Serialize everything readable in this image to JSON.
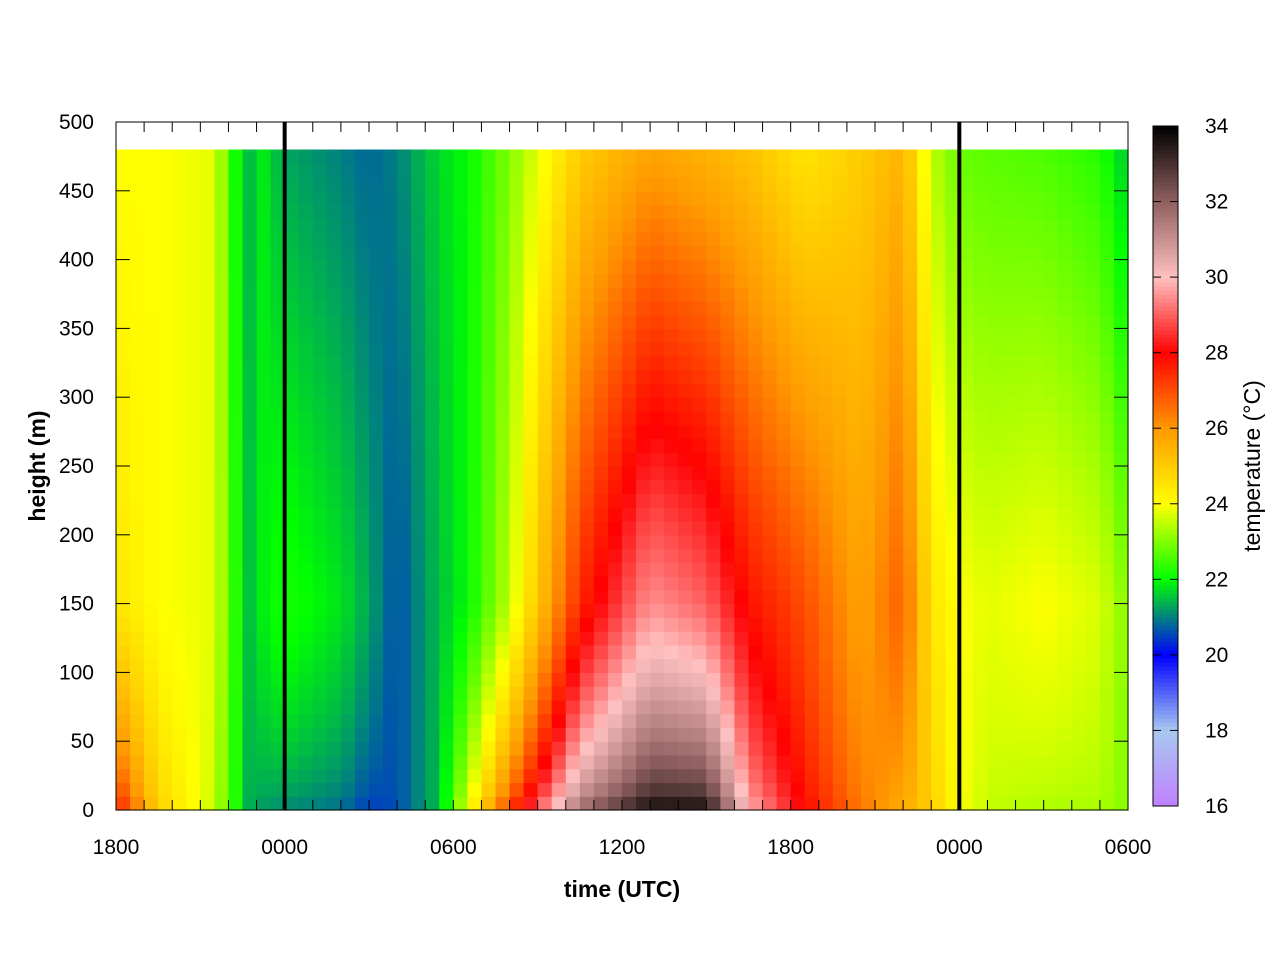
{
  "chart_data": {
    "type": "heatmap",
    "title": "",
    "xlabel": "time (UTC)",
    "ylabel": "height (m)",
    "colorbar_label": "temperature (°C)",
    "x_tick_labels": [
      "1800",
      "0000",
      "0600",
      "1200",
      "1800",
      "0000",
      "0600"
    ],
    "x_tick_hours": [
      0,
      6,
      12,
      18,
      24,
      30,
      36
    ],
    "y_tick_labels": [
      "0",
      "50",
      "100",
      "150",
      "200",
      "250",
      "300",
      "350",
      "400",
      "450",
      "500"
    ],
    "y_ticks": [
      0,
      50,
      100,
      150,
      200,
      250,
      300,
      350,
      400,
      450,
      500
    ],
    "xlim_hours": [
      0,
      36
    ],
    "ylim": [
      0,
      500
    ],
    "data_top_height": 480,
    "colorbar_ticks": [
      "16",
      "18",
      "20",
      "22",
      "24",
      "26",
      "28",
      "30",
      "32",
      "34"
    ],
    "zlim": [
      16,
      34
    ],
    "midnight_lines_hours": [
      6,
      30
    ],
    "colormap": [
      {
        "t": 16,
        "color": "#c080ff"
      },
      {
        "t": 18,
        "color": "#a8c8f0"
      },
      {
        "t": 20,
        "color": "#0000ff"
      },
      {
        "t": 21,
        "color": "#008080"
      },
      {
        "t": 22,
        "color": "#00ff00"
      },
      {
        "t": 24,
        "color": "#ffff00"
      },
      {
        "t": 26,
        "color": "#ff9900"
      },
      {
        "t": 28,
        "color": "#ff0000"
      },
      {
        "t": 30,
        "color": "#ffc0c0"
      },
      {
        "t": 32,
        "color": "#906060"
      },
      {
        "t": 34,
        "color": "#000000"
      }
    ],
    "profile_keyframes": [
      {
        "hour": 0.0,
        "surface": 28.0,
        "mid": 24.5,
        "top": 24.0
      },
      {
        "hour": 1.5,
        "surface": 25.0,
        "mid": 24.0,
        "top": 24.0
      },
      {
        "hour": 3.5,
        "surface": 23.5,
        "mid": 23.8,
        "top": 23.8
      },
      {
        "hour": 4.4,
        "surface": 22.0,
        "mid": 22.0,
        "top": 21.8
      },
      {
        "hour": 4.5,
        "surface": 21.5,
        "mid": 21.3,
        "top": 21.0
      },
      {
        "hour": 5.0,
        "surface": 21.2,
        "mid": 21.8,
        "top": 22.0
      },
      {
        "hour": 6.0,
        "surface": 21.0,
        "mid": 22.2,
        "top": 21.3
      },
      {
        "hour": 8.0,
        "surface": 20.8,
        "mid": 21.8,
        "top": 21.0
      },
      {
        "hour": 9.0,
        "surface": 20.4,
        "mid": 21.3,
        "top": 20.8
      },
      {
        "hour": 10.0,
        "surface": 20.6,
        "mid": 20.6,
        "top": 21.0
      },
      {
        "hour": 11.5,
        "surface": 21.5,
        "mid": 21.5,
        "top": 21.7
      },
      {
        "hour": 12.5,
        "surface": 24.0,
        "mid": 22.0,
        "top": 22.0
      },
      {
        "hour": 14.0,
        "surface": 27.5,
        "mid": 23.5,
        "top": 23.0
      },
      {
        "hour": 16.5,
        "surface": 32.0,
        "mid": 27.5,
        "top": 25.0
      },
      {
        "hour": 19.0,
        "surface": 34.0,
        "mid": 29.5,
        "top": 25.8
      },
      {
        "hour": 21.0,
        "surface": 34.0,
        "mid": 29.0,
        "top": 25.5
      },
      {
        "hour": 22.5,
        "surface": 30.0,
        "mid": 27.8,
        "top": 25.2
      },
      {
        "hour": 24.5,
        "surface": 28.0,
        "mid": 27.0,
        "top": 24.5
      },
      {
        "hour": 26.5,
        "surface": 26.5,
        "mid": 25.8,
        "top": 25.0
      },
      {
        "hour": 28.0,
        "surface": 25.5,
        "mid": 26.8,
        "top": 25.5
      },
      {
        "hour": 29.0,
        "surface": 25.0,
        "mid": 24.5,
        "top": 23.5
      },
      {
        "hour": 30.0,
        "surface": 24.0,
        "mid": 24.0,
        "top": 22.8
      },
      {
        "hour": 31.0,
        "surface": 23.5,
        "mid": 23.8,
        "top": 22.7
      },
      {
        "hour": 33.0,
        "surface": 23.3,
        "mid": 24.0,
        "top": 22.6
      },
      {
        "hour": 35.0,
        "surface": 23.3,
        "mid": 23.7,
        "top": 22.3
      },
      {
        "hour": 36.0,
        "surface": 23.0,
        "mid": 23.0,
        "top": 21.5
      }
    ]
  }
}
